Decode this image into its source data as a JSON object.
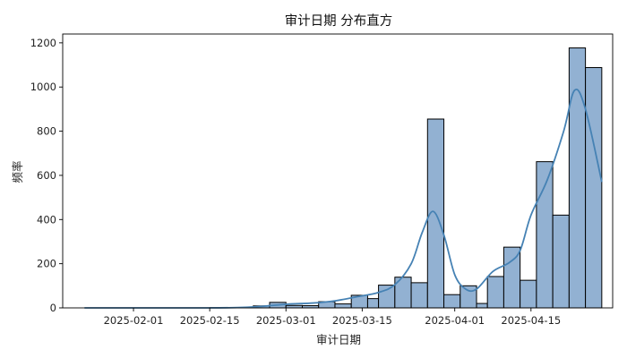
{
  "chart_data": {
    "type": "bar",
    "title": "审计日期 分布直方",
    "xlabel": "审计日期",
    "ylabel": "频率",
    "x_tick_labels": [
      "2025-02-01",
      "2025-02-15",
      "2025-03-01",
      "2025-03-15",
      "2025-04-01",
      "2025-04-15"
    ],
    "x_tick_dates": [
      "2025-02-01",
      "2025-02-15",
      "2025-03-01",
      "2025-03-15",
      "2025-04-01",
      "2025-04-15"
    ],
    "y_ticks": [
      0,
      200,
      400,
      600,
      800,
      1000,
      1200
    ],
    "xlim": [
      "2025-01-19",
      "2025-04-30"
    ],
    "ylim": [
      0,
      1240
    ],
    "grid": false,
    "bar_color": "#92b1d2",
    "edge_color": "#000000",
    "kde_color": "#4682b4",
    "bins": [
      {
        "start": "2025-01-23",
        "end": "2025-01-26",
        "value": 0
      },
      {
        "start": "2025-01-26",
        "end": "2025-01-29",
        "value": 0
      },
      {
        "start": "2025-01-29",
        "end": "2025-02-01",
        "value": 0
      },
      {
        "start": "2025-02-01",
        "end": "2025-02-03",
        "value": 0
      },
      {
        "start": "2025-02-03",
        "end": "2025-02-06",
        "value": 0
      },
      {
        "start": "2025-02-06",
        "end": "2025-02-09",
        "value": 0
      },
      {
        "start": "2025-02-09",
        "end": "2025-02-12",
        "value": 0
      },
      {
        "start": "2025-02-12",
        "end": "2025-02-15",
        "value": 0
      },
      {
        "start": "2025-02-15",
        "end": "2025-02-18",
        "value": 1
      },
      {
        "start": "2025-02-18",
        "end": "2025-02-21",
        "value": 1
      },
      {
        "start": "2025-02-21",
        "end": "2025-02-23",
        "value": 2
      },
      {
        "start": "2025-02-23",
        "end": "2025-02-26",
        "value": 9
      },
      {
        "start": "2025-02-26",
        "end": "2025-03-01",
        "value": 25
      },
      {
        "start": "2025-03-01",
        "end": "2025-03-04",
        "value": 11
      },
      {
        "start": "2025-03-04",
        "end": "2025-03-07",
        "value": 10
      },
      {
        "start": "2025-03-07",
        "end": "2025-03-10",
        "value": 28
      },
      {
        "start": "2025-03-10",
        "end": "2025-03-13",
        "value": 18
      },
      {
        "start": "2025-03-13",
        "end": "2025-03-16",
        "value": 57
      },
      {
        "start": "2025-03-16",
        "end": "2025-03-18",
        "value": 42
      },
      {
        "start": "2025-03-18",
        "end": "2025-03-21",
        "value": 103
      },
      {
        "start": "2025-03-21",
        "end": "2025-03-24",
        "value": 139
      },
      {
        "start": "2025-03-24",
        "end": "2025-03-27",
        "value": 114
      },
      {
        "start": "2025-03-27",
        "end": "2025-03-30",
        "value": 855
      },
      {
        "start": "2025-03-30",
        "end": "2025-04-02",
        "value": 60
      },
      {
        "start": "2025-04-02",
        "end": "2025-04-05",
        "value": 100
      },
      {
        "start": "2025-04-05",
        "end": "2025-04-07",
        "value": 20
      },
      {
        "start": "2025-04-07",
        "end": "2025-04-10",
        "value": 142
      },
      {
        "start": "2025-04-10",
        "end": "2025-04-13",
        "value": 275
      },
      {
        "start": "2025-04-13",
        "end": "2025-04-16",
        "value": 125
      },
      {
        "start": "2025-04-16",
        "end": "2025-04-19",
        "value": 662
      },
      {
        "start": "2025-04-19",
        "end": "2025-04-22",
        "value": 420
      },
      {
        "start": "2025-04-22",
        "end": "2025-04-25",
        "value": 1177
      },
      {
        "start": "2025-04-25",
        "end": "2025-04-28",
        "value": 1088
      }
    ],
    "kde_curve": [
      {
        "x": "2025-01-23",
        "y": 0
      },
      {
        "x": "2025-02-15",
        "y": 0
      },
      {
        "x": "2025-02-22",
        "y": 3
      },
      {
        "x": "2025-02-27",
        "y": 12
      },
      {
        "x": "2025-03-02",
        "y": 18
      },
      {
        "x": "2025-03-06",
        "y": 22
      },
      {
        "x": "2025-03-10",
        "y": 32
      },
      {
        "x": "2025-03-14",
        "y": 50
      },
      {
        "x": "2025-03-18",
        "y": 70
      },
      {
        "x": "2025-03-21",
        "y": 105
      },
      {
        "x": "2025-03-24",
        "y": 200
      },
      {
        "x": "2025-03-26",
        "y": 340
      },
      {
        "x": "2025-03-28",
        "y": 437
      },
      {
        "x": "2025-03-30",
        "y": 330
      },
      {
        "x": "2025-04-01",
        "y": 150
      },
      {
        "x": "2025-04-03",
        "y": 85
      },
      {
        "x": "2025-04-05",
        "y": 85
      },
      {
        "x": "2025-04-08",
        "y": 165
      },
      {
        "x": "2025-04-11",
        "y": 205
      },
      {
        "x": "2025-04-13",
        "y": 260
      },
      {
        "x": "2025-04-15",
        "y": 420
      },
      {
        "x": "2025-04-18",
        "y": 580
      },
      {
        "x": "2025-04-21",
        "y": 800
      },
      {
        "x": "2025-04-23",
        "y": 985
      },
      {
        "x": "2025-04-25",
        "y": 900
      },
      {
        "x": "2025-04-28",
        "y": 570
      }
    ]
  }
}
